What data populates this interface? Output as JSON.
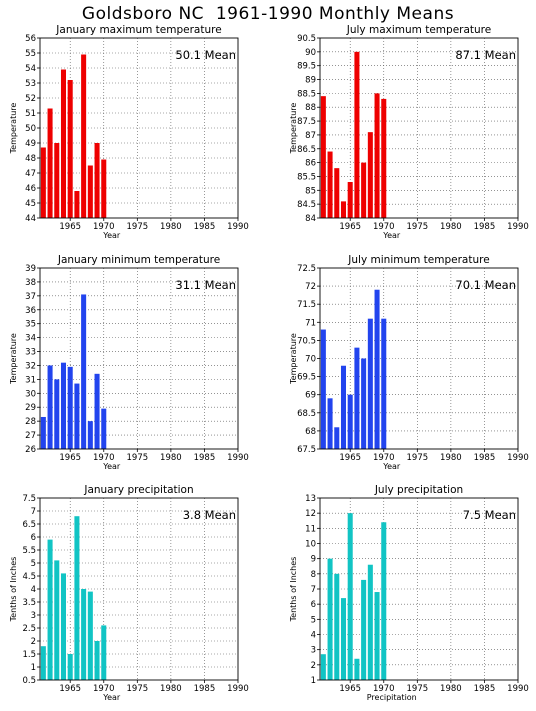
{
  "title": "Goldsboro NC  1961-1990 Monthly Means",
  "colors": {
    "tmax": "#ee0000",
    "tmin": "#2244ee",
    "prcp": "#11c4c4",
    "grid": "#555555",
    "axis": "#000000"
  },
  "chart_data": [
    {
      "type": "bar",
      "title": "January maximum temperature",
      "ylabel": "Temperature",
      "xlabel": "Year",
      "mean_label": "50.1 Mean",
      "color": "#ee0000",
      "xlim": [
        1960.5,
        1990
      ],
      "ylim": [
        44,
        56
      ],
      "yticks": [
        44,
        45,
        46,
        47,
        48,
        49,
        50,
        51,
        52,
        53,
        54,
        55,
        56
      ],
      "ytick_labels": [
        "44",
        "45",
        "46",
        "47",
        "48",
        "49",
        "50",
        "51",
        "52",
        "53",
        "54",
        "55",
        "56"
      ],
      "xticks": [
        1965,
        1970,
        1975,
        1980,
        1985,
        1990
      ],
      "xtick_labels": [
        "1965",
        "1970",
        "1975",
        "1980",
        "1985",
        "1990"
      ],
      "x": [
        1961,
        1962,
        1963,
        1964,
        1965,
        1966,
        1967,
        1968,
        1969,
        1970
      ],
      "values": [
        48.7,
        51.3,
        49.0,
        53.9,
        53.2,
        45.8,
        54.9,
        47.5,
        49.0,
        47.9
      ]
    },
    {
      "type": "bar",
      "title": "July maximum temperature",
      "ylabel": "Temperature",
      "xlabel": "Year",
      "mean_label": "87.1 Mean",
      "color": "#ee0000",
      "xlim": [
        1960.5,
        1990
      ],
      "ylim": [
        84,
        90.5
      ],
      "yticks": [
        84,
        84.5,
        85,
        85.5,
        86,
        86.5,
        87,
        87.5,
        88,
        88.5,
        89,
        89.5,
        90,
        90.5
      ],
      "ytick_labels": [
        "84",
        "84.5",
        "85",
        "85.5",
        "86",
        "86.5",
        "87",
        "87.5",
        "88",
        "88.5",
        "89",
        "89.5",
        "90",
        "90.5"
      ],
      "xticks": [
        1965,
        1970,
        1975,
        1980,
        1985,
        1990
      ],
      "xtick_labels": [
        "1965",
        "1970",
        "1975",
        "1980",
        "1985",
        "1990"
      ],
      "x": [
        1961,
        1962,
        1963,
        1964,
        1965,
        1966,
        1967,
        1968,
        1969,
        1970
      ],
      "values": [
        88.4,
        86.4,
        85.8,
        84.6,
        85.3,
        90.0,
        86.0,
        87.1,
        88.5,
        88.3
      ]
    },
    {
      "type": "bar",
      "title": "January minimum temperature",
      "ylabel": "Temperature",
      "xlabel": "Year",
      "mean_label": "31.1 Mean",
      "color": "#2244ee",
      "xlim": [
        1960.5,
        1990
      ],
      "ylim": [
        26,
        39
      ],
      "yticks": [
        26,
        27,
        28,
        29,
        30,
        31,
        32,
        33,
        34,
        35,
        36,
        37,
        38,
        39
      ],
      "ytick_labels": [
        "26",
        "27",
        "28",
        "29",
        "30",
        "31",
        "32",
        "33",
        "34",
        "35",
        "36",
        "37",
        "38",
        "39"
      ],
      "xticks": [
        1965,
        1970,
        1975,
        1980,
        1985,
        1990
      ],
      "xtick_labels": [
        "1965",
        "1970",
        "1975",
        "1980",
        "1985",
        "1990"
      ],
      "x": [
        1961,
        1962,
        1963,
        1964,
        1965,
        1966,
        1967,
        1968,
        1969,
        1970
      ],
      "values": [
        28.3,
        32.0,
        31.0,
        32.2,
        31.9,
        30.7,
        37.1,
        28.0,
        31.4,
        28.9
      ]
    },
    {
      "type": "bar",
      "title": "July minimum temperature",
      "ylabel": "Temperature",
      "xlabel": "Year",
      "mean_label": "70.1 Mean",
      "color": "#2244ee",
      "xlim": [
        1960.5,
        1990
      ],
      "ylim": [
        67.5,
        72.5
      ],
      "yticks": [
        67.5,
        68,
        68.5,
        69,
        69.5,
        70,
        70.5,
        71,
        71.5,
        72,
        72.5
      ],
      "ytick_labels": [
        "67.5",
        "68",
        "68.5",
        "69",
        "69.5",
        "70",
        "70.5",
        "71",
        "71.5",
        "72",
        "72.5"
      ],
      "xticks": [
        1965,
        1970,
        1975,
        1980,
        1985,
        1990
      ],
      "xtick_labels": [
        "1965",
        "1970",
        "1975",
        "1980",
        "1985",
        "1990"
      ],
      "x": [
        1961,
        1962,
        1963,
        1964,
        1965,
        1966,
        1967,
        1968,
        1969,
        1970
      ],
      "values": [
        70.8,
        68.9,
        68.1,
        69.8,
        69.0,
        70.3,
        70.0,
        71.1,
        71.9,
        71.1
      ]
    },
    {
      "type": "bar",
      "title": "January precipitation",
      "ylabel": "Tenths of Inches",
      "xlabel": "Year",
      "mean_label": "3.8 Mean",
      "color": "#11c4c4",
      "xlim": [
        1960.5,
        1990
      ],
      "ylim": [
        0.5,
        7.5
      ],
      "yticks": [
        0.5,
        1,
        1.5,
        2,
        2.5,
        3,
        3.5,
        4,
        4.5,
        5,
        5.5,
        6,
        6.5,
        7,
        7.5
      ],
      "ytick_labels": [
        "0.5",
        "1",
        "1.5",
        "2",
        "2.5",
        "3",
        "3.5",
        "4",
        "4.5",
        "5",
        "5.5",
        "6",
        "6.5",
        "7",
        "7.5"
      ],
      "xticks": [
        1965,
        1970,
        1975,
        1980,
        1985,
        1990
      ],
      "xtick_labels": [
        "1965",
        "1970",
        "1975",
        "1980",
        "1985",
        "1990"
      ],
      "x": [
        1961,
        1962,
        1963,
        1964,
        1965,
        1966,
        1967,
        1968,
        1969,
        1970
      ],
      "values": [
        1.8,
        5.9,
        5.1,
        4.6,
        1.5,
        6.8,
        4.0,
        3.9,
        2.0,
        2.6
      ]
    },
    {
      "type": "bar",
      "title": "July precipitation",
      "ylabel": "Tenths of Inches",
      "xlabel": "Precipitation",
      "mean_label": "7.5 Mean",
      "color": "#11c4c4",
      "xlim": [
        1960.5,
        1990
      ],
      "ylim": [
        1,
        13
      ],
      "yticks": [
        1,
        2,
        3,
        4,
        5,
        6,
        7,
        8,
        9,
        10,
        11,
        12,
        13
      ],
      "ytick_labels": [
        "1",
        "2",
        "3",
        "4",
        "5",
        "6",
        "7",
        "8",
        "9",
        "10",
        "11",
        "12",
        "13"
      ],
      "xticks": [
        1965,
        1970,
        1975,
        1980,
        1985,
        1990
      ],
      "xtick_labels": [
        "1965",
        "1970",
        "1975",
        "1980",
        "1985",
        "1990"
      ],
      "x": [
        1961,
        1962,
        1963,
        1964,
        1965,
        1966,
        1967,
        1968,
        1969,
        1970
      ],
      "values": [
        2.7,
        9.0,
        8.0,
        6.4,
        12.0,
        2.4,
        7.6,
        8.6,
        6.8,
        11.4
      ]
    }
  ]
}
